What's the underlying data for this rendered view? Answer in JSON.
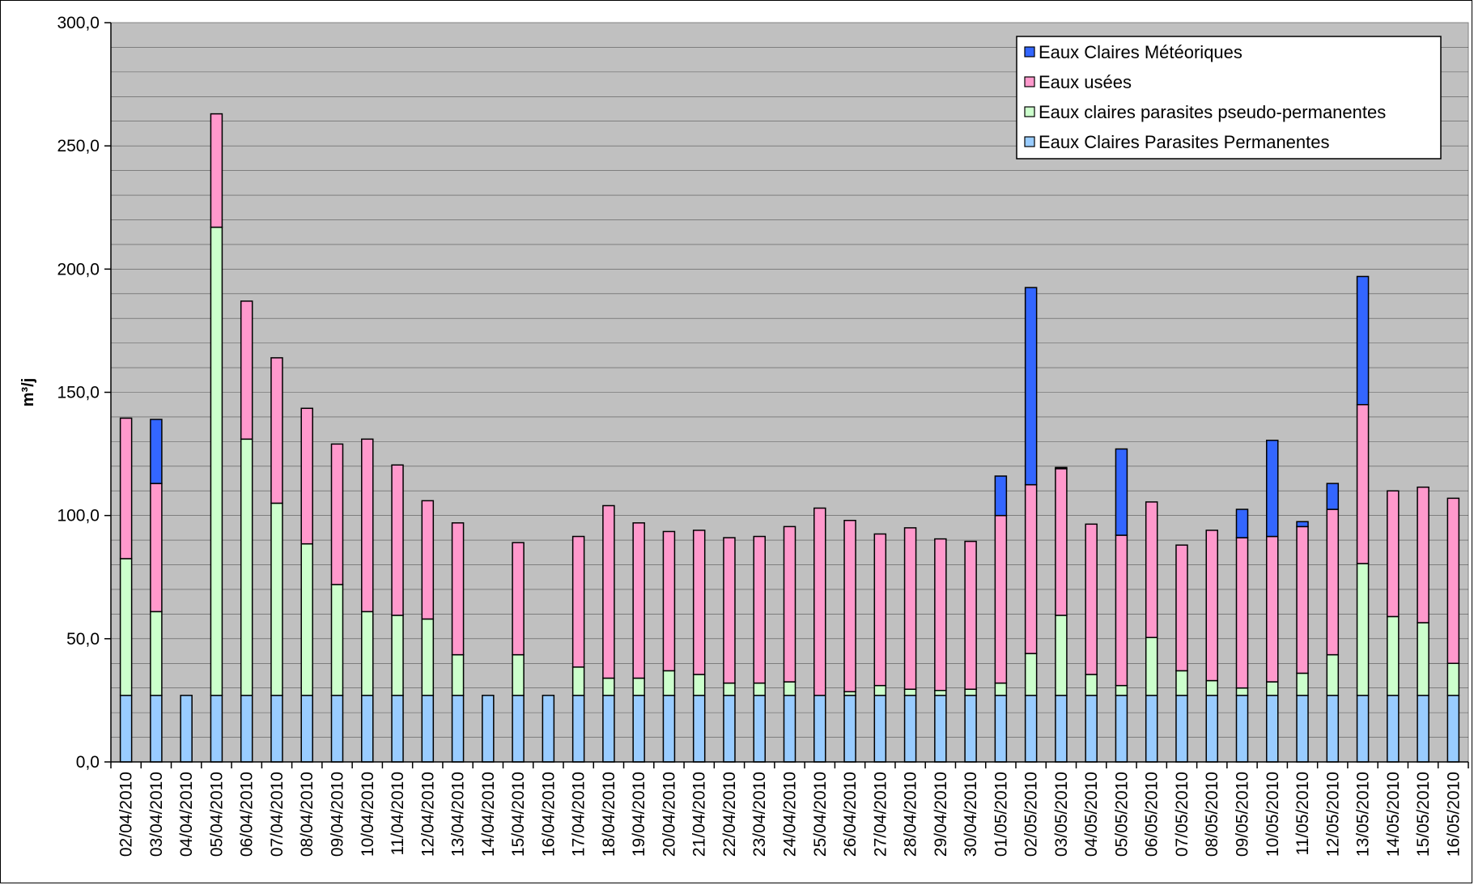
{
  "chart_data": {
    "type": "bar",
    "stacked": true,
    "title": "",
    "xlabel": "",
    "ylabel": "m³/j",
    "ylim": [
      0,
      300
    ],
    "yticks": [
      "0,0",
      "50,0",
      "100,0",
      "150,0",
      "200,0",
      "250,0",
      "300,0"
    ],
    "grid": true,
    "legend_position": "top-right",
    "plot_background": "#c0c0c0",
    "categories": [
      "02/04/2010",
      "03/04/2010",
      "04/04/2010",
      "05/04/2010",
      "06/04/2010",
      "07/04/2010",
      "08/04/2010",
      "09/04/2010",
      "10/04/2010",
      "11/04/2010",
      "12/04/2010",
      "13/04/2010",
      "14/04/2010",
      "15/04/2010",
      "16/04/2010",
      "17/04/2010",
      "18/04/2010",
      "19/04/2010",
      "20/04/2010",
      "21/04/2010",
      "22/04/2010",
      "23/04/2010",
      "24/04/2010",
      "25/04/2010",
      "26/04/2010",
      "27/04/2010",
      "28/04/2010",
      "29/04/2010",
      "30/04/2010",
      "01/05/2010",
      "02/05/2010",
      "03/05/2010",
      "04/05/2010",
      "05/05/2010",
      "06/05/2010",
      "07/05/2010",
      "08/05/2010",
      "09/05/2010",
      "10/05/2010",
      "11/05/2010",
      "12/05/2010",
      "13/05/2010",
      "14/05/2010",
      "15/05/2010",
      "16/05/2010"
    ],
    "series": [
      {
        "name": "Eaux Claires Parasites Permanentes",
        "color": "#99ccff",
        "values": [
          27,
          27,
          27,
          27,
          27,
          27,
          27,
          27,
          27,
          27,
          27,
          27,
          27,
          27,
          27,
          27,
          27,
          27,
          27,
          27,
          27,
          27,
          27,
          27,
          27,
          27,
          27,
          27,
          27,
          27,
          27,
          27,
          27,
          27,
          27,
          27,
          27,
          27,
          27,
          27,
          27,
          27,
          27,
          27,
          27
        ]
      },
      {
        "name": "Eaux claires parasites pseudo-permanentes",
        "color": "#ccffcc",
        "values": [
          55.5,
          34,
          0,
          190,
          104,
          78,
          61.5,
          45,
          34,
          32.5,
          31,
          16.5,
          0,
          16.5,
          0,
          11.5,
          7,
          7,
          10,
          8.5,
          5,
          5,
          5.5,
          0,
          1.5,
          4,
          2.5,
          2,
          2.5,
          5,
          17,
          32.5,
          8.5,
          4,
          23.5,
          10,
          6,
          3,
          5.5,
          9,
          16.5,
          53.5,
          32,
          29.5,
          13
        ]
      },
      {
        "name": "Eaux usées",
        "color": "#ff99cc",
        "values": [
          57,
          52,
          0,
          46,
          56,
          59,
          55,
          57,
          70,
          61,
          48,
          53.5,
          0,
          45.5,
          0,
          53,
          70,
          63,
          56.5,
          58.5,
          59,
          59.5,
          63,
          76,
          69.5,
          61.5,
          65.5,
          61.5,
          60,
          68,
          68.5,
          59.5,
          61,
          61,
          55,
          51,
          61,
          61,
          59,
          59.5,
          59,
          64.5,
          51,
          55,
          67
        ]
      },
      {
        "name": "Eaux Claires Météoriques",
        "color": "#3366ff",
        "values": [
          0,
          26,
          0,
          0,
          0,
          0,
          0,
          0,
          0,
          0,
          0,
          0,
          0,
          0,
          0,
          0,
          0,
          0,
          0,
          0,
          0,
          0,
          0,
          0,
          0,
          0,
          0,
          0,
          0,
          16,
          80,
          0.5,
          0,
          35,
          0,
          0,
          0,
          11.5,
          39,
          2,
          10.5,
          52,
          0,
          0,
          0
        ]
      }
    ],
    "legend_order": [
      3,
      2,
      1,
      0
    ]
  }
}
